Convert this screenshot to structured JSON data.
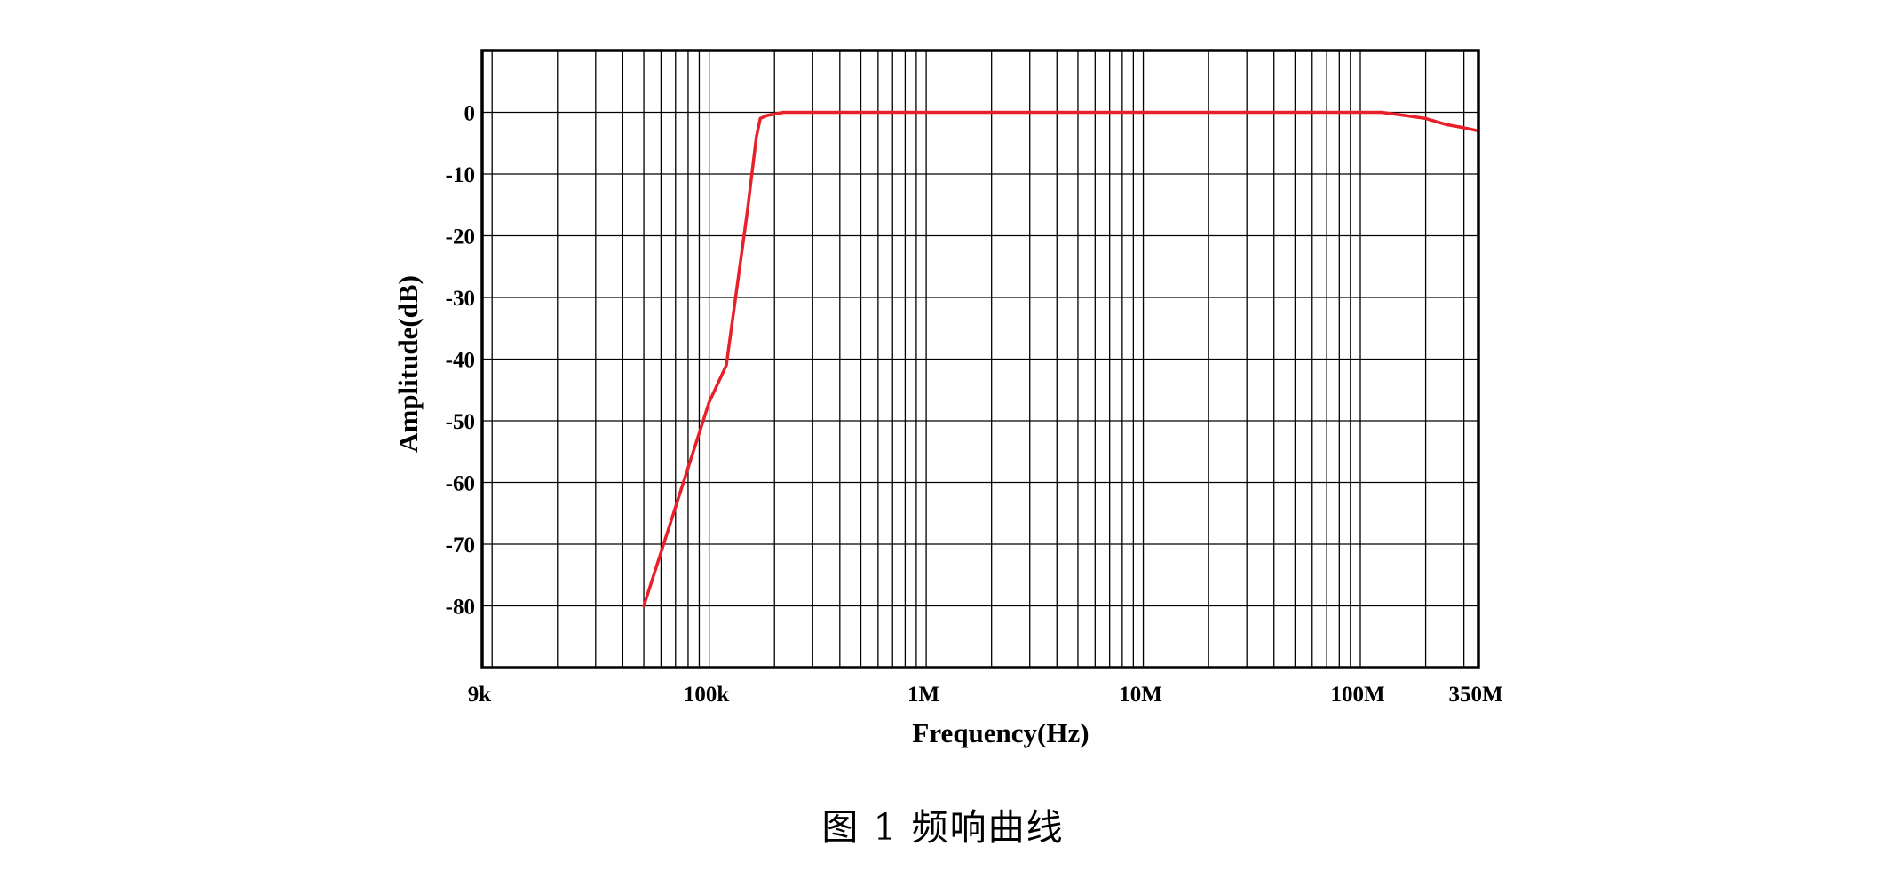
{
  "chart_data": {
    "type": "line",
    "title": "",
    "xlabel": "Frequency(Hz)",
    "ylabel": "Amplitude(dB)",
    "x_scale": "log",
    "xlim": [
      9000,
      350000000
    ],
    "ylim": [
      -90,
      10
    ],
    "grid": true,
    "legend": "none",
    "x_tick_labels": [
      {
        "value": 9000,
        "label": "9k"
      },
      {
        "value": 100000,
        "label": "100k"
      },
      {
        "value": 1000000,
        "label": "1M"
      },
      {
        "value": 10000000,
        "label": "10M"
      },
      {
        "value": 100000000,
        "label": "100M"
      },
      {
        "value": 350000000,
        "label": "350M"
      }
    ],
    "y_tick_labels": [
      {
        "value": 0,
        "label": "0"
      },
      {
        "value": -10,
        "label": "-10"
      },
      {
        "value": -20,
        "label": "-20"
      },
      {
        "value": -30,
        "label": "-30"
      },
      {
        "value": -40,
        "label": "-40"
      },
      {
        "value": -50,
        "label": "-50"
      },
      {
        "value": -60,
        "label": "-60"
      },
      {
        "value": -70,
        "label": "-70"
      },
      {
        "value": -80,
        "label": "-80"
      }
    ],
    "series": [
      {
        "color": "#e8202a",
        "x": [
          50000,
          100000,
          120000,
          150000,
          165000,
          172000,
          185000,
          220000,
          1000000,
          10000000,
          100000000,
          125000000,
          160000000,
          200000000,
          250000000,
          300000000,
          350000000
        ],
        "y": [
          -80,
          -47,
          -41,
          -16,
          -4,
          -1,
          -0.5,
          0,
          0,
          0,
          0,
          0,
          -0.5,
          -1,
          -2,
          -2.5,
          -3
        ]
      }
    ]
  },
  "caption": "图 1  频响曲线",
  "colors": {
    "line": "#e8202a",
    "grid": "#000000",
    "background": "#ffffff"
  }
}
